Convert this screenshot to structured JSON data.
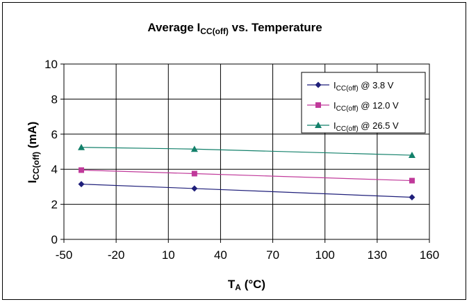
{
  "chart_data": {
    "type": "line",
    "title": {
      "main": "Average I",
      "sub": "CC(off)",
      "tail": " vs. Temperature"
    },
    "xlabel": {
      "main": "T",
      "sub": "A",
      "tail": " (°C)"
    },
    "ylabel": {
      "main": "I",
      "sub": "CC(off)",
      "tail": " (mA)"
    },
    "xlim": [
      -50,
      160
    ],
    "ylim": [
      0,
      10
    ],
    "xticks": [
      -50,
      -20,
      10,
      40,
      70,
      100,
      130,
      160
    ],
    "yticks": [
      0,
      2,
      4,
      6,
      8,
      10
    ],
    "grid": true,
    "legend_position": "top-right",
    "series": [
      {
        "name": {
          "main": "I",
          "sub": "CC(off)",
          "tail": " @ 3.8 V"
        },
        "color": "#1f1f7a",
        "marker": "diamond",
        "x": [
          -40,
          25,
          150
        ],
        "y": [
          3.15,
          2.9,
          2.4
        ]
      },
      {
        "name": {
          "main": "I",
          "sub": "CC(off)",
          "tail": " @ 12.0 V"
        },
        "color": "#c0399a",
        "marker": "square",
        "x": [
          -40,
          25,
          150
        ],
        "y": [
          3.95,
          3.75,
          3.35
        ]
      },
      {
        "name": {
          "main": "I",
          "sub": "CC(off)",
          "tail": " @ 26.5 V"
        },
        "color": "#12806a",
        "marker": "triangle",
        "x": [
          -40,
          25,
          150
        ],
        "y": [
          5.25,
          5.15,
          4.8
        ]
      }
    ]
  }
}
